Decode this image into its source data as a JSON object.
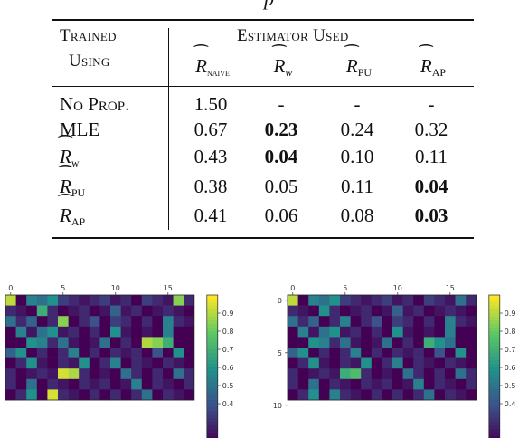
{
  "caption_fragment": "p",
  "table": {
    "header": {
      "col1_line1": "Trained",
      "col1_line2": "Using",
      "group": "Estimator Used",
      "estimators": [
        {
          "symbol": "R",
          "sub": "naive",
          "sub_sc": true
        },
        {
          "symbol": "R",
          "sub": "w",
          "sub_sc": false,
          "sub_italic": true
        },
        {
          "symbol": "R",
          "sub": "PU",
          "sub_sc": false
        },
        {
          "symbol": "R",
          "sub": "AP",
          "sub_sc": false
        }
      ]
    },
    "rows": [
      {
        "label": "No Prop.",
        "label_type": "sc",
        "values": [
          "1.50",
          "-",
          "-",
          "-"
        ],
        "bold": [
          false,
          false,
          false,
          false
        ]
      },
      {
        "label": "MLE",
        "label_type": "text",
        "values": [
          "0.67",
          "0.23",
          "0.24",
          "0.32"
        ],
        "bold": [
          false,
          true,
          false,
          false
        ]
      },
      {
        "label": "R",
        "label_sub": "w",
        "label_type": "hat",
        "values": [
          "0.43",
          "0.04",
          "0.10",
          "0.11"
        ],
        "bold": [
          false,
          true,
          false,
          false
        ]
      },
      {
        "label": "R",
        "label_sub": "PU",
        "label_type": "hat",
        "values": [
          "0.38",
          "0.05",
          "0.11",
          "0.04"
        ],
        "bold": [
          false,
          false,
          false,
          true
        ]
      },
      {
        "label": "R",
        "label_sub": "AP",
        "label_type": "hat",
        "values": [
          "0.41",
          "0.06",
          "0.08",
          "0.03"
        ],
        "bold": [
          false,
          false,
          false,
          true
        ]
      }
    ]
  },
  "heatmaps": [
    {
      "x_ticks": [
        "0",
        "5",
        "10",
        "15"
      ],
      "y_ticks": [],
      "colorbar_ticks": [
        "0.9",
        "0.8",
        "0.7",
        "0.6",
        "0.5",
        "0.4"
      ],
      "grid": [
        [
          0.92,
          0.2,
          0.55,
          0.5,
          0.6,
          0.35,
          0.3,
          0.25,
          0.3,
          0.35,
          0.25,
          0.3,
          0.2,
          0.35,
          0.3,
          0.25,
          0.85,
          0.3
        ],
        [
          0.3,
          0.25,
          0.2,
          0.7,
          0.3,
          0.2,
          0.25,
          0.3,
          0.2,
          0.25,
          0.45,
          0.25,
          0.3,
          0.2,
          0.25,
          0.3,
          0.25,
          0.2
        ],
        [
          0.5,
          0.3,
          0.45,
          0.2,
          0.3,
          0.85,
          0.2,
          0.3,
          0.4,
          0.2,
          0.35,
          0.3,
          0.2,
          0.3,
          0.2,
          0.55,
          0.3,
          0.25
        ],
        [
          0.2,
          0.55,
          0.25,
          0.5,
          0.6,
          0.25,
          0.3,
          0.2,
          0.3,
          0.2,
          0.6,
          0.25,
          0.2,
          0.25,
          0.2,
          0.55,
          0.2,
          0.2
        ],
        [
          0.2,
          0.2,
          0.6,
          0.55,
          0.3,
          0.5,
          0.25,
          0.2,
          0.25,
          0.5,
          0.2,
          0.3,
          0.2,
          0.9,
          0.85,
          0.7,
          0.2,
          0.2
        ],
        [
          0.45,
          0.6,
          0.2,
          0.3,
          0.2,
          0.3,
          0.55,
          0.2,
          0.3,
          0.2,
          0.3,
          0.25,
          0.3,
          0.2,
          0.4,
          0.2,
          0.6,
          0.2
        ],
        [
          0.2,
          0.3,
          0.6,
          0.25,
          0.2,
          0.3,
          0.25,
          0.6,
          0.2,
          0.3,
          0.55,
          0.2,
          0.3,
          0.25,
          0.2,
          0.3,
          0.25,
          0.2
        ],
        [
          0.3,
          0.2,
          0.25,
          0.3,
          0.25,
          0.95,
          0.9,
          0.3,
          0.2,
          0.25,
          0.2,
          0.5,
          0.3,
          0.2,
          0.3,
          0.2,
          0.5,
          0.3
        ],
        [
          0.3,
          0.2,
          0.5,
          0.2,
          0.3,
          0.25,
          0.2,
          0.3,
          0.25,
          0.3,
          0.2,
          0.25,
          0.55,
          0.2,
          0.3,
          0.25,
          0.2,
          0.3
        ],
        [
          0.2,
          0.3,
          0.6,
          0.2,
          0.95,
          0.3,
          0.25,
          0.2,
          0.3,
          0.2,
          0.3,
          0.2,
          0.3,
          0.5,
          0.2,
          0.3,
          0.25,
          0.2
        ]
      ]
    },
    {
      "x_ticks": [
        "0",
        "5",
        "10",
        "15"
      ],
      "y_ticks": [
        "0",
        "5",
        "10"
      ],
      "colorbar_ticks": [
        "0.9",
        "0.8",
        "0.7",
        "0.6",
        "0.5",
        "0.4"
      ],
      "grid": [
        [
          0.92,
          0.2,
          0.55,
          0.5,
          0.6,
          0.35,
          0.3,
          0.25,
          0.3,
          0.35,
          0.25,
          0.3,
          0.2,
          0.35,
          0.3,
          0.25,
          0.5,
          0.3
        ],
        [
          0.3,
          0.25,
          0.2,
          0.6,
          0.3,
          0.2,
          0.25,
          0.3,
          0.2,
          0.25,
          0.45,
          0.25,
          0.3,
          0.2,
          0.25,
          0.3,
          0.25,
          0.2
        ],
        [
          0.5,
          0.3,
          0.45,
          0.2,
          0.3,
          0.55,
          0.2,
          0.3,
          0.4,
          0.2,
          0.35,
          0.3,
          0.2,
          0.3,
          0.2,
          0.55,
          0.3,
          0.25
        ],
        [
          0.2,
          0.55,
          0.25,
          0.5,
          0.6,
          0.25,
          0.3,
          0.2,
          0.3,
          0.2,
          0.6,
          0.25,
          0.2,
          0.25,
          0.2,
          0.55,
          0.2,
          0.2
        ],
        [
          0.2,
          0.2,
          0.6,
          0.55,
          0.3,
          0.5,
          0.25,
          0.2,
          0.25,
          0.5,
          0.2,
          0.3,
          0.2,
          0.7,
          0.6,
          0.5,
          0.2,
          0.2
        ],
        [
          0.45,
          0.6,
          0.2,
          0.3,
          0.2,
          0.3,
          0.55,
          0.2,
          0.3,
          0.2,
          0.3,
          0.25,
          0.3,
          0.2,
          0.4,
          0.2,
          0.6,
          0.2
        ],
        [
          0.2,
          0.3,
          0.6,
          0.25,
          0.2,
          0.3,
          0.25,
          0.6,
          0.2,
          0.3,
          0.55,
          0.2,
          0.3,
          0.25,
          0.2,
          0.3,
          0.25,
          0.2
        ],
        [
          0.3,
          0.2,
          0.25,
          0.3,
          0.25,
          0.7,
          0.75,
          0.3,
          0.2,
          0.25,
          0.2,
          0.5,
          0.3,
          0.2,
          0.3,
          0.2,
          0.5,
          0.3
        ],
        [
          0.3,
          0.2,
          0.5,
          0.2,
          0.3,
          0.25,
          0.2,
          0.3,
          0.25,
          0.3,
          0.2,
          0.25,
          0.55,
          0.2,
          0.3,
          0.25,
          0.2,
          0.3
        ],
        [
          0.2,
          0.3,
          0.6,
          0.2,
          0.55,
          0.3,
          0.25,
          0.2,
          0.3,
          0.2,
          0.3,
          0.2,
          0.3,
          0.5,
          0.2,
          0.3,
          0.25,
          0.2
        ]
      ]
    }
  ]
}
